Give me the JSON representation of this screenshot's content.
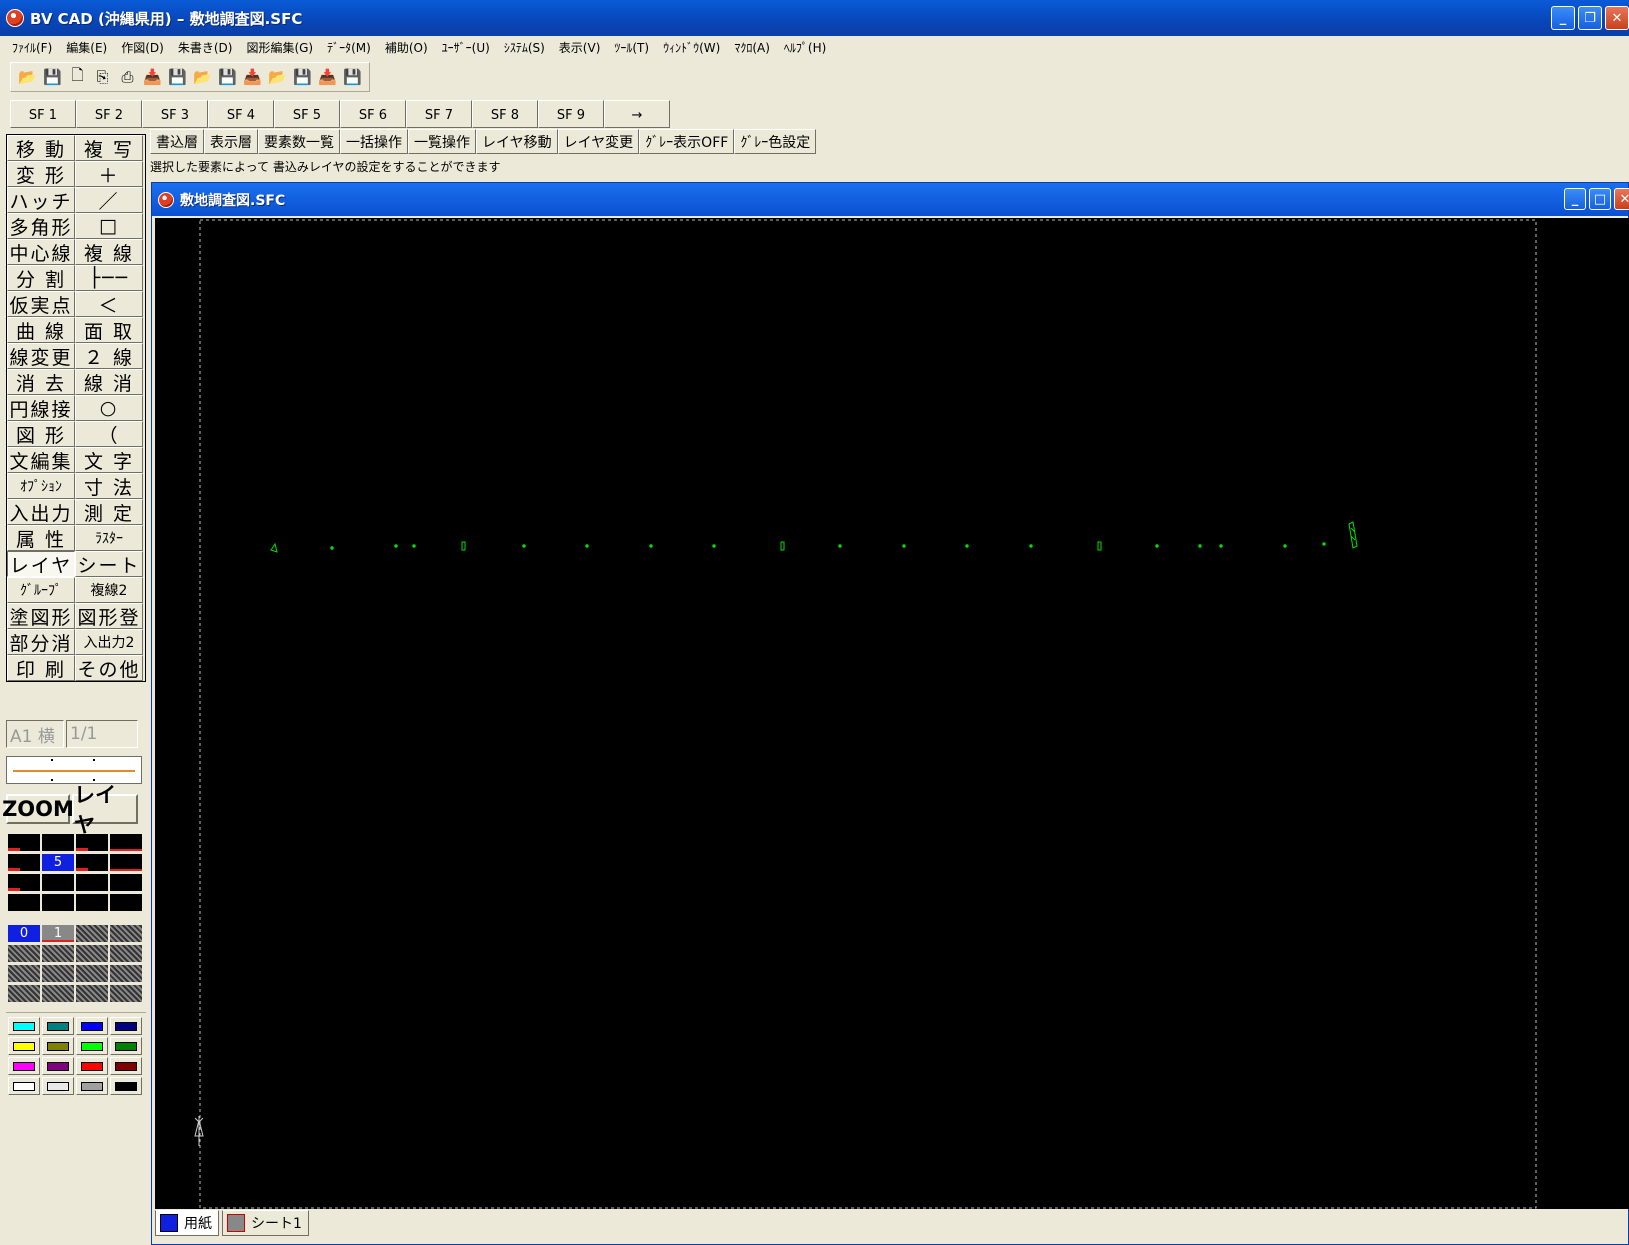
{
  "window": {
    "title": "BV CAD (沖縄県用) – 敷地調査図.SFC"
  },
  "menu": [
    "ﾌｧｲﾙ(F)",
    "編集(E)",
    "作図(D)",
    "朱書き(D)",
    "図形編集(G)",
    "ﾃﾞｰﾀ(M)",
    "補助(O)",
    "ﾕｰｻﾞｰ(U)",
    "ｼｽﾃﾑ(S)",
    "表示(V)",
    "ﾂｰﾙ(T)",
    "ｳｨﾝﾄﾞｳ(W)",
    "ﾏｸﾛ(A)",
    "ﾍﾙﾌﾟ(H)"
  ],
  "toolbar_icons": [
    "open-icon",
    "save-icon",
    "new-icon",
    "preview-icon",
    "print-icon",
    "import-icon",
    "export-icon",
    "open2-icon",
    "save2-icon",
    "import2-icon",
    "open3-icon",
    "save3-icon",
    "import3-icon",
    "disabled-icon"
  ],
  "sf_buttons": [
    "SF 1",
    "SF 2",
    "SF 3",
    "SF 4",
    "SF 5",
    "SF 6",
    "SF 7",
    "SF 8",
    "SF 9",
    "→"
  ],
  "commands": [
    [
      "移 動",
      "複 写"
    ],
    [
      "変 形",
      "＋"
    ],
    [
      "ハッチ",
      "／"
    ],
    [
      "多角形",
      "□"
    ],
    [
      "中心線",
      "複 線"
    ],
    [
      "分 割",
      "├──"
    ],
    [
      "仮実点",
      "＜"
    ],
    [
      "曲 線",
      "面 取"
    ],
    [
      "線変更",
      "２ 線"
    ],
    [
      "消 去",
      "線 消"
    ],
    [
      "円線接",
      "○"
    ],
    [
      "図 形",
      "（"
    ],
    [
      "文編集",
      "文 字"
    ],
    [
      "ｵﾌﾟｼｮﾝ",
      "寸 法"
    ],
    [
      "入出力",
      "測 定"
    ],
    [
      "属 性",
      "ﾗｽﾀｰ"
    ],
    [
      "レイヤ",
      "シート"
    ],
    [
      "ｸﾞﾙｰﾌﾟ",
      "複線2"
    ],
    [
      "塗図形",
      "図形登"
    ],
    [
      "部分消",
      "入出力2"
    ],
    [
      "印 刷",
      "その他"
    ]
  ],
  "paper": {
    "size": "A1 横",
    "scale": "1/1"
  },
  "zoom_label": "ZOOM",
  "layer_label": "レイヤ",
  "current_layer_number": "5",
  "layer_list": [
    "0",
    "1"
  ],
  "palette_colors": [
    "#00ffff",
    "#008080",
    "#0000ff",
    "#000080",
    "#ffff00",
    "#808000",
    "#00ff00",
    "#008000",
    "#ff00ff",
    "#800080",
    "#ff0000",
    "#800000",
    "#ffffff",
    "#e8e8e8",
    "#a0a0a0",
    "#000000"
  ],
  "layer_buttons": [
    "書込層",
    "表示層",
    "要素数一覧",
    "一括操作",
    "一覧操作",
    "レイヤ移動",
    "レイヤ変更",
    "ｸﾞﾚｰ表示OFF",
    "ｸﾞﾚｰ色設定"
  ],
  "status_message": "選択した要素によって 書込みレイヤの設定をすることができます",
  "document": {
    "title": "敷地調査図.SFC"
  },
  "sheet_tabs": [
    "用紙",
    "シート1"
  ]
}
